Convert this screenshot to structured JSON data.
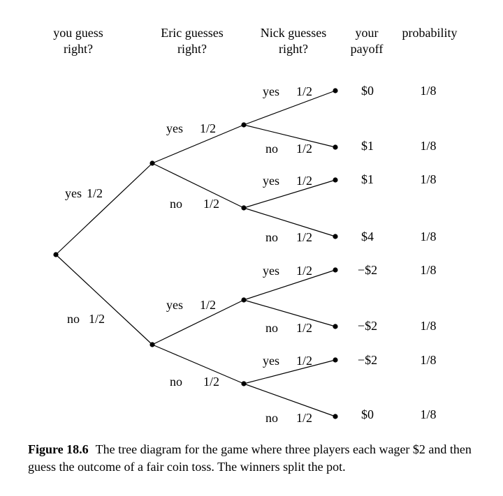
{
  "headers": {
    "you": "you guess\nright?",
    "eric": "Eric guesses\nright?",
    "nick": "Nick guesses\nright?",
    "payoff": "your\npayoff",
    "probability": "probability"
  },
  "level1": [
    {
      "answer": "yes",
      "prob": "1/2"
    },
    {
      "answer": "no",
      "prob": "1/2"
    }
  ],
  "level2": [
    {
      "answer": "yes",
      "prob": "1/2"
    },
    {
      "answer": "no",
      "prob": "1/2"
    },
    {
      "answer": "yes",
      "prob": "1/2"
    },
    {
      "answer": "no",
      "prob": "1/2"
    }
  ],
  "level3": [
    {
      "answer": "yes",
      "prob": "1/2"
    },
    {
      "answer": "no",
      "prob": "1/2"
    },
    {
      "answer": "yes",
      "prob": "1/2"
    },
    {
      "answer": "no",
      "prob": "1/2"
    },
    {
      "answer": "yes",
      "prob": "1/2"
    },
    {
      "answer": "no",
      "prob": "1/2"
    },
    {
      "answer": "yes",
      "prob": "1/2"
    },
    {
      "answer": "no",
      "prob": "1/2"
    }
  ],
  "outcomes": [
    {
      "payoff": "$0",
      "probability": "1/8"
    },
    {
      "payoff": "$1",
      "probability": "1/8"
    },
    {
      "payoff": "$1",
      "probability": "1/8"
    },
    {
      "payoff": "$4",
      "probability": "1/8"
    },
    {
      "payoff": "−$2",
      "probability": "1/8"
    },
    {
      "payoff": "−$2",
      "probability": "1/8"
    },
    {
      "payoff": "−$2",
      "probability": "1/8"
    },
    {
      "payoff": "$0",
      "probability": "1/8"
    }
  ],
  "caption": {
    "label": "Figure 18.6",
    "text": "The tree diagram for the game where three players each wager $2 and then guess the outcome of a fair coin toss. The winners split the pot."
  }
}
